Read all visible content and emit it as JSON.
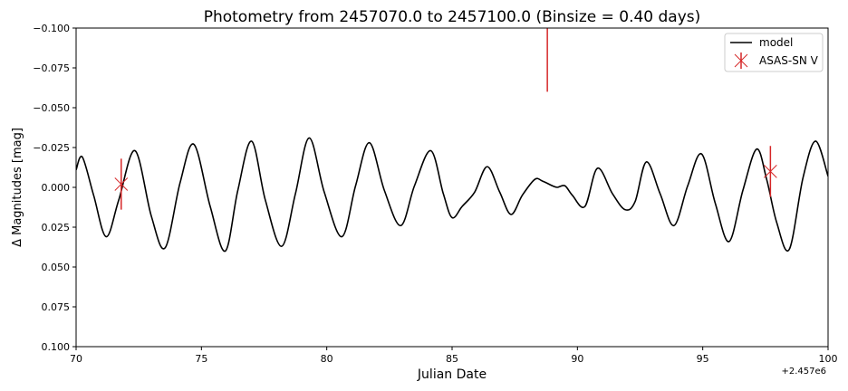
{
  "chart_data": {
    "type": "line",
    "title": "Photometry from 2457070.0 to 2457100.0 (Binsize = 0.40 days)",
    "xlabel": "Julian Date",
    "ylabel": "Δ Magnitudes [mag]",
    "x_offset_label": "+2.457e6",
    "xlim": [
      70,
      100
    ],
    "ylim": [
      0.1,
      -0.1
    ],
    "y_inverted": true,
    "grid": false,
    "legend_position": "top-right",
    "x_ticks": [
      70,
      75,
      80,
      85,
      90,
      95,
      100
    ],
    "x_tick_labels": [
      "70",
      "75",
      "80",
      "85",
      "90",
      "95",
      "100"
    ],
    "y_ticks": [
      -0.1,
      -0.075,
      -0.05,
      -0.025,
      0.0,
      0.025,
      0.05,
      0.075,
      0.1
    ],
    "y_tick_labels": [
      "−0.100",
      "−0.075",
      "−0.050",
      "−0.025",
      "0.000",
      "0.025",
      "0.050",
      "0.075",
      "0.100"
    ],
    "series": [
      {
        "name": "model",
        "kind": "line",
        "color": "#000000",
        "x": [
          70.0,
          70.25,
          70.7,
          71.2,
          71.7,
          72.35,
          73.0,
          73.55,
          74.15,
          74.7,
          75.35,
          75.95,
          76.45,
          77.0,
          77.55,
          78.2,
          78.75,
          79.3,
          79.9,
          80.6,
          81.15,
          81.7,
          82.3,
          82.95,
          83.5,
          84.15,
          84.65,
          85.0,
          85.4,
          85.9,
          86.4,
          86.9,
          87.35,
          87.8,
          88.3,
          88.6,
          89.0,
          89.2,
          89.5,
          89.8,
          90.3,
          90.8,
          91.4,
          91.9,
          92.3,
          92.75,
          93.3,
          93.85,
          94.4,
          94.95,
          95.5,
          96.05,
          96.6,
          97.15,
          97.55,
          97.95,
          98.45,
          99.0,
          99.5,
          100.0
        ],
        "y": [
          -0.011,
          -0.019,
          0.005,
          0.031,
          0.008,
          -0.023,
          0.018,
          0.038,
          -0.003,
          -0.027,
          0.012,
          0.04,
          0.002,
          -0.029,
          0.008,
          0.037,
          0.004,
          -0.031,
          0.003,
          0.031,
          -0.001,
          -0.028,
          0.002,
          0.024,
          -0.001,
          -0.023,
          0.004,
          0.019,
          0.012,
          0.003,
          -0.013,
          0.003,
          0.017,
          0.005,
          -0.005,
          -0.004,
          -0.001,
          0.0,
          -0.001,
          0.005,
          0.012,
          -0.012,
          0.004,
          0.014,
          0.009,
          -0.016,
          0.004,
          0.024,
          -0.001,
          -0.021,
          0.01,
          0.034,
          0.002,
          -0.024,
          -0.005,
          0.022,
          0.039,
          -0.006,
          -0.029,
          -0.007
        ]
      },
      {
        "name": "ASAS-SN V",
        "kind": "errorbar",
        "color": "#d62728",
        "marker": "x",
        "points": [
          {
            "x": 71.8,
            "y": -0.002,
            "yerr": 0.016
          },
          {
            "x": 88.8,
            "y": -0.1,
            "yerr": 0.04,
            "marker_visible": false
          },
          {
            "x": 97.7,
            "y": -0.01,
            "yerr": 0.016
          }
        ]
      }
    ]
  }
}
